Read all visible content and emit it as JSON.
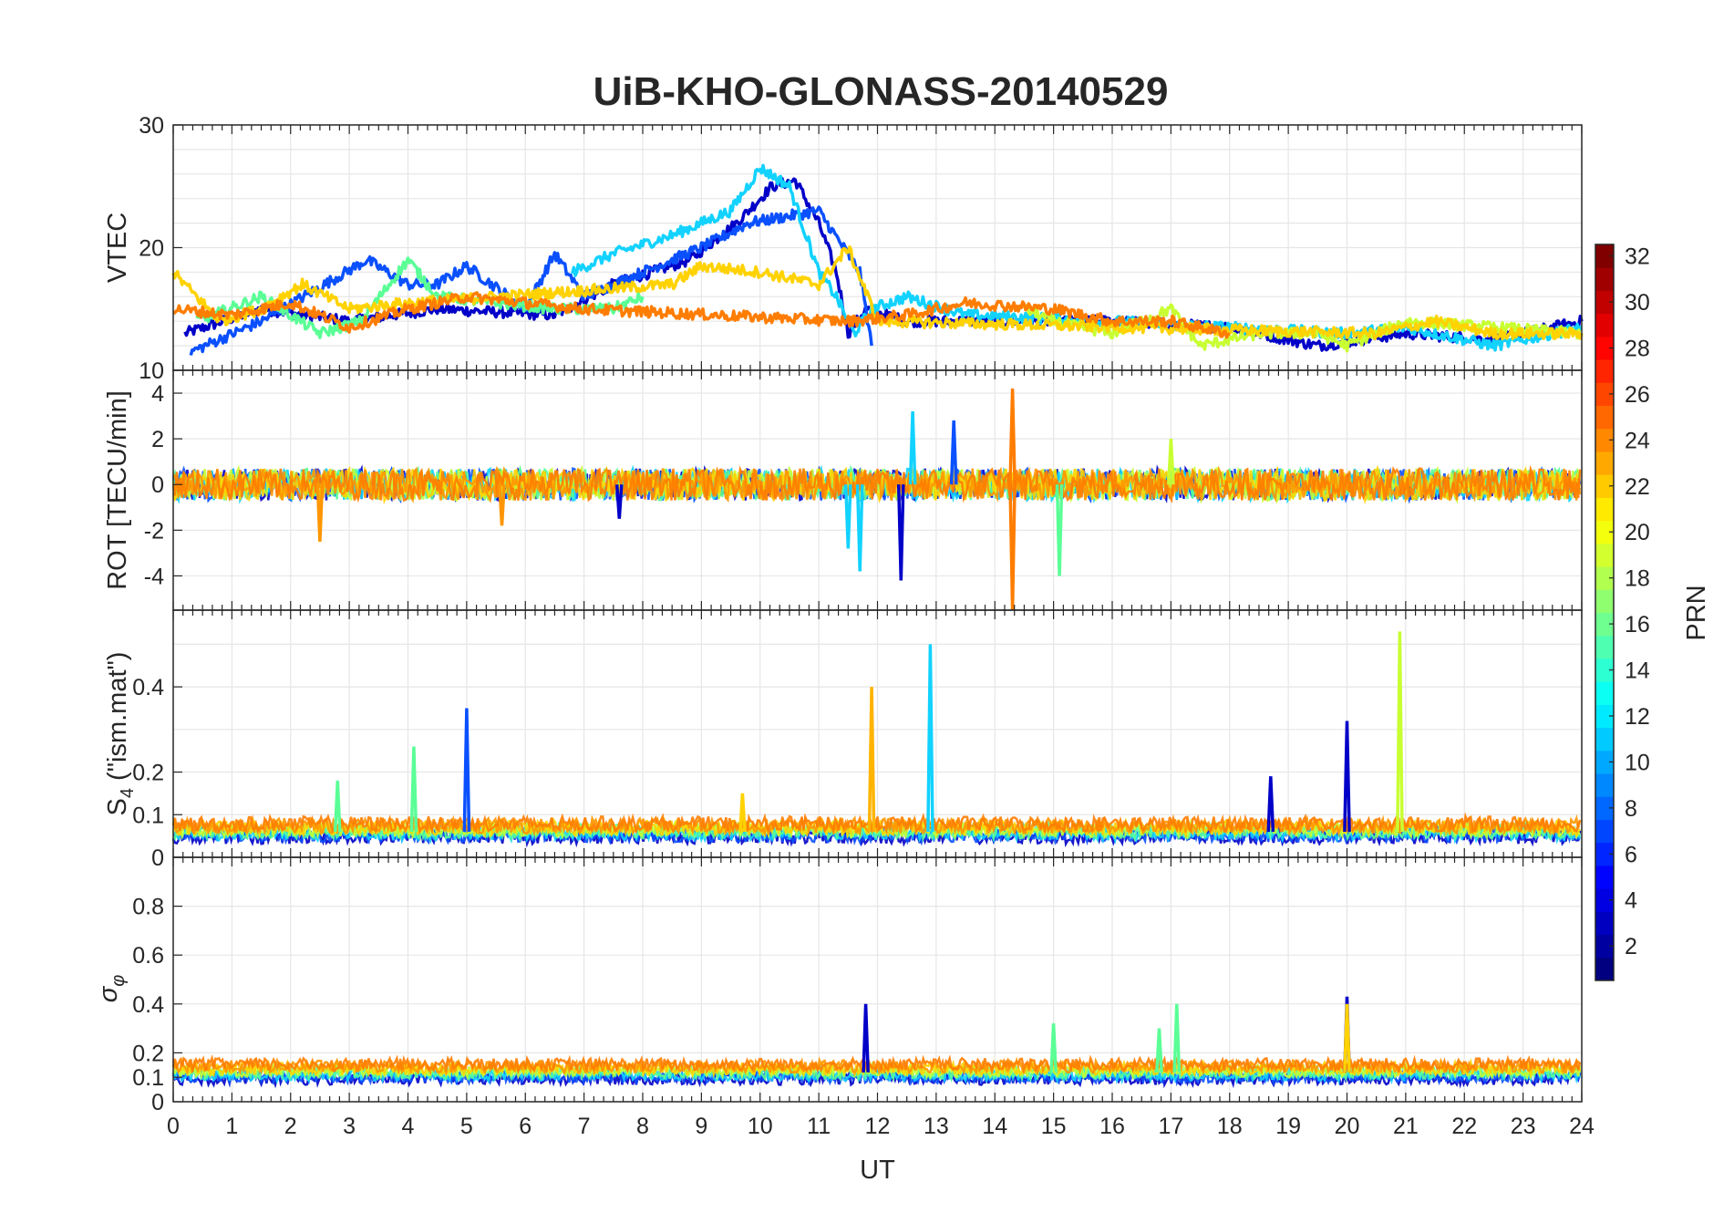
{
  "title": "UiB-KHO-GLONASS-20140529",
  "colorbar": {
    "label": "PRN",
    "ticks": [
      "2",
      "4",
      "6",
      "8",
      "10",
      "12",
      "14",
      "16",
      "18",
      "20",
      "22",
      "24",
      "26",
      "28",
      "30",
      "32"
    ],
    "range": [
      1,
      32
    ],
    "colormap": "jet"
  },
  "chart_data": [
    {
      "type": "line",
      "panel": "vtec",
      "ylabel": "VTEC",
      "ylim": [
        10,
        30
      ],
      "yticks": [
        "10",
        "20",
        "30"
      ],
      "grid": true,
      "series": [
        {
          "color": "#0000c8",
          "x": [
            0.2,
            1.5,
            3.0,
            4.5,
            6.5,
            7.5,
            8.8,
            9.6,
            10.2,
            10.6,
            11.0,
            11.3,
            11.5,
            11.8,
            12.5,
            14.0,
            16.0,
            18.0,
            19.5,
            21.0,
            22.5,
            24.0
          ],
          "y": [
            13,
            15,
            14,
            15,
            14.5,
            17,
            19,
            22,
            25,
            25.5,
            22,
            18,
            13,
            15,
            14,
            14,
            14,
            13.5,
            12,
            13,
            12.5,
            14
          ]
        },
        {
          "color": "#0a50ff",
          "x": [
            0.3,
            1.5,
            3.3,
            4.0,
            4.5,
            5.0,
            6.0,
            6.5,
            7.0,
            8.0,
            9.0,
            9.8,
            11.0,
            11.7,
            11.9
          ],
          "y": [
            11.5,
            14,
            19,
            17,
            17,
            18.5,
            15,
            19.5,
            16,
            18,
            20,
            22,
            23,
            18,
            12
          ]
        },
        {
          "color": "#12d2ff",
          "x": [
            6.8,
            7.5,
            8.5,
            9.5,
            10.0,
            10.5,
            11.0,
            11.3,
            11.6,
            11.9,
            12.5,
            13.5,
            16.0,
            18.0,
            20.0,
            21.0,
            22.5,
            24.0
          ],
          "y": [
            18,
            19.5,
            21,
            23,
            26.5,
            25,
            18,
            16,
            13,
            15,
            16,
            14.5,
            14,
            13.5,
            13,
            13.5,
            12,
            13.5
          ]
        },
        {
          "color": "#5aff96",
          "x": [
            0.4,
            1.5,
            2.5,
            3.2,
            4.0,
            4.5,
            5.5,
            6.5,
            7.0,
            7.5,
            8.0
          ],
          "y": [
            14,
            16,
            13,
            14,
            19,
            16,
            15.5,
            15,
            15,
            15,
            16
          ]
        },
        {
          "color": "#c8ff32",
          "x": [
            14.5,
            15.0,
            16.0,
            17.0,
            17.5,
            18.5,
            19.5,
            20.0,
            21.0,
            22.5,
            24.0
          ],
          "y": [
            15,
            14,
            13,
            15,
            12,
            13,
            13,
            12,
            14,
            13.5,
            13
          ]
        },
        {
          "color": "#ffd200",
          "x": [
            0.0,
            0.8,
            1.5,
            2.2,
            3.0,
            4.0,
            8.5,
            9.0,
            10.0,
            11.0,
            11.5,
            12.0,
            20.5,
            21.5,
            22.5,
            24.0
          ],
          "y": [
            18,
            14,
            15,
            17,
            15,
            15.5,
            17,
            18.5,
            18,
            17,
            20,
            14,
            13,
            14,
            13,
            13
          ]
        },
        {
          "color": "#ff7d00",
          "x": [
            0.0,
            1.0,
            2.0,
            3.0,
            4.0,
            5.0,
            6.0,
            7.0,
            11.5,
            12.5,
            13.5,
            15.0,
            16.0,
            17.0,
            18.0
          ],
          "y": [
            15,
            14.5,
            15.5,
            13.5,
            15,
            16,
            15.5,
            15,
            14,
            14.5,
            15.5,
            15,
            14,
            14,
            13
          ]
        }
      ]
    },
    {
      "type": "line",
      "panel": "rot",
      "ylabel": "ROT [TECU/min]",
      "ylim": [
        -5.5,
        5
      ],
      "yticks": [
        "-4",
        "-2",
        "0",
        "2",
        "4"
      ],
      "grid": true,
      "spikes": [
        {
          "x": 2.5,
          "y": -2.5,
          "color": "#ff9600"
        },
        {
          "x": 5.6,
          "y": -1.8,
          "color": "#ff9600"
        },
        {
          "x": 7.6,
          "y": -1.5,
          "color": "#0000c8"
        },
        {
          "x": 11.5,
          "y": -2.8,
          "color": "#12d2ff"
        },
        {
          "x": 11.7,
          "y": -3.8,
          "color": "#12d2ff"
        },
        {
          "x": 12.4,
          "y": -4.2,
          "color": "#0000c8"
        },
        {
          "x": 12.6,
          "y": 3.2,
          "color": "#12d2ff"
        },
        {
          "x": 13.3,
          "y": 2.8,
          "color": "#0a50ff"
        },
        {
          "x": 14.3,
          "y": 4.2,
          "color": "#ff7d00"
        },
        {
          "x": 14.3,
          "y": -5.5,
          "color": "#ff7d00"
        },
        {
          "x": 15.1,
          "y": -4.0,
          "color": "#5aff96"
        },
        {
          "x": 17.0,
          "y": 2.0,
          "color": "#c8ff32"
        }
      ]
    },
    {
      "type": "line",
      "panel": "s4",
      "ylabel": "S4 (\"ism.mat\")",
      "ylim": [
        0,
        0.58
      ],
      "yticks": [
        "0",
        "0.1",
        "0.2",
        "0.4"
      ],
      "grid": true,
      "spikes": [
        {
          "x": 2.8,
          "y": 0.18,
          "color": "#5aff96"
        },
        {
          "x": 4.1,
          "y": 0.26,
          "color": "#5aff96"
        },
        {
          "x": 5.0,
          "y": 0.35,
          "color": "#0a50ff"
        },
        {
          "x": 9.7,
          "y": 0.15,
          "color": "#ffd200"
        },
        {
          "x": 11.9,
          "y": 0.4,
          "color": "#ffb400"
        },
        {
          "x": 12.9,
          "y": 0.5,
          "color": "#12d2ff"
        },
        {
          "x": 18.7,
          "y": 0.19,
          "color": "#0000c8"
        },
        {
          "x": 20.0,
          "y": 0.32,
          "color": "#0000c8"
        },
        {
          "x": 20.9,
          "y": 0.53,
          "color": "#c8ff32"
        }
      ]
    },
    {
      "type": "line",
      "panel": "sigma-phi",
      "ylabel": "σ φ",
      "ylim": [
        0,
        1
      ],
      "yticks": [
        "0",
        "0.1",
        "0.2",
        "0.4",
        "0.6",
        "0.8"
      ],
      "xlabel": "UT",
      "xlim": [
        0,
        24
      ],
      "xticks": [
        "0",
        "1",
        "2",
        "3",
        "4",
        "5",
        "6",
        "7",
        "8",
        "9",
        "10",
        "11",
        "12",
        "13",
        "14",
        "15",
        "16",
        "17",
        "18",
        "19",
        "20",
        "21",
        "22",
        "23",
        "24"
      ],
      "grid": true,
      "spikes": [
        {
          "x": 11.8,
          "y": 0.4,
          "color": "#0000c8"
        },
        {
          "x": 15.0,
          "y": 0.32,
          "color": "#5aff96"
        },
        {
          "x": 16.8,
          "y": 0.3,
          "color": "#5aff96"
        },
        {
          "x": 17.1,
          "y": 0.4,
          "color": "#5aff96"
        },
        {
          "x": 20.0,
          "y": 0.43,
          "color": "#0000c8"
        },
        {
          "x": 20.0,
          "y": 0.4,
          "color": "#ffd200"
        }
      ]
    }
  ]
}
